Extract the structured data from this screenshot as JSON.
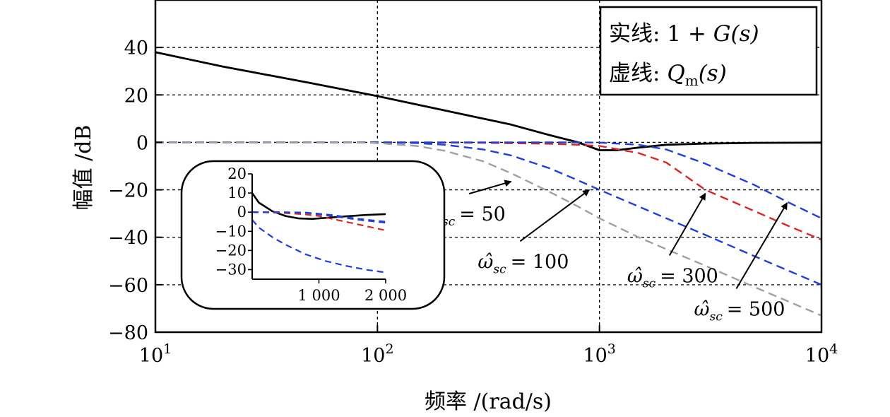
{
  "chart_data": {
    "type": "line",
    "xlabel": "频率 /(rad/s)",
    "ylabel": "幅值 /dB",
    "x_scale": "log",
    "xlim": [
      10,
      10000
    ],
    "ylim": [
      -80,
      60
    ],
    "x_ticks": [
      10,
      100,
      1000,
      10000
    ],
    "x_tick_labels": [
      {
        "base": "10",
        "exp": "1"
      },
      {
        "base": "10",
        "exp": "2"
      },
      {
        "base": "10",
        "exp": "3"
      },
      {
        "base": "10",
        "exp": "4"
      }
    ],
    "y_ticks": [
      -80,
      -60,
      -40,
      -20,
      0,
      20,
      40
    ],
    "y_tick_labels": [
      "−80",
      "−60",
      "−40",
      "−20",
      "0",
      "20",
      "40"
    ],
    "grid": true,
    "legend": {
      "position": "top-right",
      "line1_prefix": "实线: 1 + ",
      "line1_math": "G(s)",
      "line2_prefix": "虚线: ",
      "line2_math_base": "Q",
      "line2_math_sub": "m",
      "line2_math_tail": "(s)"
    },
    "series": [
      {
        "style": "solid",
        "color": "#000000",
        "x": [
          10,
          20,
          50,
          100,
          200,
          400,
          600,
          800,
          1000,
          1200,
          1500,
          2000,
          3000,
          5000,
          10000
        ],
        "y": [
          38,
          32,
          25,
          19.5,
          13.5,
          7.5,
          3,
          0,
          -3.3,
          -3.3,
          -2.2,
          -1,
          -0.5,
          -0.2,
          -0.1
        ]
      },
      {
        "style": "dashed",
        "color": "#d62728",
        "x": [
          10,
          100,
          300,
          600,
          800,
          1000,
          1500,
          2000,
          3000,
          5000,
          7000,
          10000
        ],
        "y": [
          0,
          0,
          -0.2,
          -0.6,
          -1,
          -1.5,
          -4.5,
          -8.5,
          -20,
          -29,
          -35,
          -41
        ]
      },
      {
        "style": "dashed",
        "color": "#1f3fd6",
        "x": [
          10,
          100,
          300,
          600,
          800,
          1000,
          1500,
          2000,
          3000,
          5000,
          7000,
          10000
        ],
        "y": [
          0,
          0,
          0,
          0,
          0,
          -0.1,
          -1,
          -3,
          -9,
          -18,
          -25,
          -32
        ]
      },
      {
        "style": "dashed",
        "color": "#1f3fd6",
        "x": [
          10,
          100,
          150,
          200,
          300,
          400,
          600,
          800,
          1000,
          1500,
          2000,
          3000,
          5000,
          10000
        ],
        "y": [
          0,
          0,
          -0.3,
          -1,
          -3,
          -5.5,
          -11,
          -16,
          -20,
          -27,
          -32,
          -39,
          -48,
          -60
        ]
      },
      {
        "style": "dashed",
        "color": "#a0a0a0",
        "x": [
          10,
          80,
          100,
          150,
          200,
          300,
          400,
          600,
          800,
          1000,
          1500,
          2000,
          3000,
          5000,
          10000
        ],
        "y": [
          0,
          0,
          -0.3,
          -1.5,
          -3.5,
          -8,
          -13,
          -21,
          -27,
          -32,
          -40,
          -45,
          -52,
          -61,
          -73
        ]
      }
    ],
    "annotations": [
      {
        "omega": "ω̂",
        "sub": "sc",
        "value": "= 50",
        "arrow_to": [
          400,
          -16.5
        ],
        "text_at": [
          200,
          -30
        ]
      },
      {
        "omega": "ω̂",
        "sub": "sc",
        "value": "= 100",
        "arrow_to": [
          900,
          -20
        ],
        "text_at": [
          340,
          -50
        ]
      },
      {
        "omega": "ω̂",
        "sub": "sc",
        "value": "= 300",
        "arrow_to": [
          3000,
          -21.5
        ],
        "text_at": [
          1600,
          -56
        ]
      },
      {
        "omega": "ω̂",
        "sub": "sc",
        "value": "= 500",
        "arrow_to": [
          7000,
          -25.5
        ],
        "text_at": [
          3200,
          -70
        ]
      }
    ],
    "inset": {
      "type": "line",
      "x_scale": "linear",
      "xlim": [
        0,
        2000
      ],
      "ylim": [
        -35,
        20
      ],
      "x_ticks": [
        1000,
        2000
      ],
      "x_tick_labels": [
        "1 000",
        "2 000"
      ],
      "y_ticks": [
        -30,
        -20,
        -10,
        0,
        10,
        20
      ],
      "y_tick_labels": [
        "−30",
        "−20",
        "−10",
        "0",
        "10",
        "20"
      ],
      "series": [
        {
          "style": "solid",
          "color": "#000000",
          "x": [
            0,
            100,
            300,
            500,
            700,
            900,
            1100,
            1400,
            1700,
            2000
          ],
          "y": [
            10,
            5,
            0.5,
            -2,
            -3.3,
            -3.5,
            -3,
            -2.2,
            -1.5,
            -1
          ]
        },
        {
          "style": "dashed",
          "color": "#d62728",
          "x": [
            0,
            200,
            400,
            600,
            800,
            1000,
            1200,
            1400,
            1600,
            1800,
            2000
          ],
          "y": [
            0,
            -0.1,
            -0.3,
            -0.7,
            -1.2,
            -2,
            -3.5,
            -5,
            -6.5,
            -8,
            -9.5
          ]
        },
        {
          "style": "dashed",
          "color": "#1f3fd6",
          "x": [
            0,
            400,
            800,
            1200,
            1600,
            2000
          ],
          "y": [
            0,
            0,
            -0.2,
            -1.5,
            -3.5,
            -5
          ]
        },
        {
          "style": "dashed",
          "color": "#1f3fd6",
          "x": [
            0,
            400,
            800,
            1200,
            1600,
            2000
          ],
          "y": [
            0,
            0,
            -0.3,
            -2,
            -4,
            -5.5
          ]
        },
        {
          "style": "dashed",
          "color": "#1f3fd6",
          "x": [
            0,
            100,
            300,
            500,
            800,
            1100,
            1400,
            1700,
            2000
          ],
          "y": [
            -4,
            -8,
            -13,
            -17,
            -22,
            -25.5,
            -28,
            -30,
            -31.5
          ]
        }
      ]
    }
  }
}
